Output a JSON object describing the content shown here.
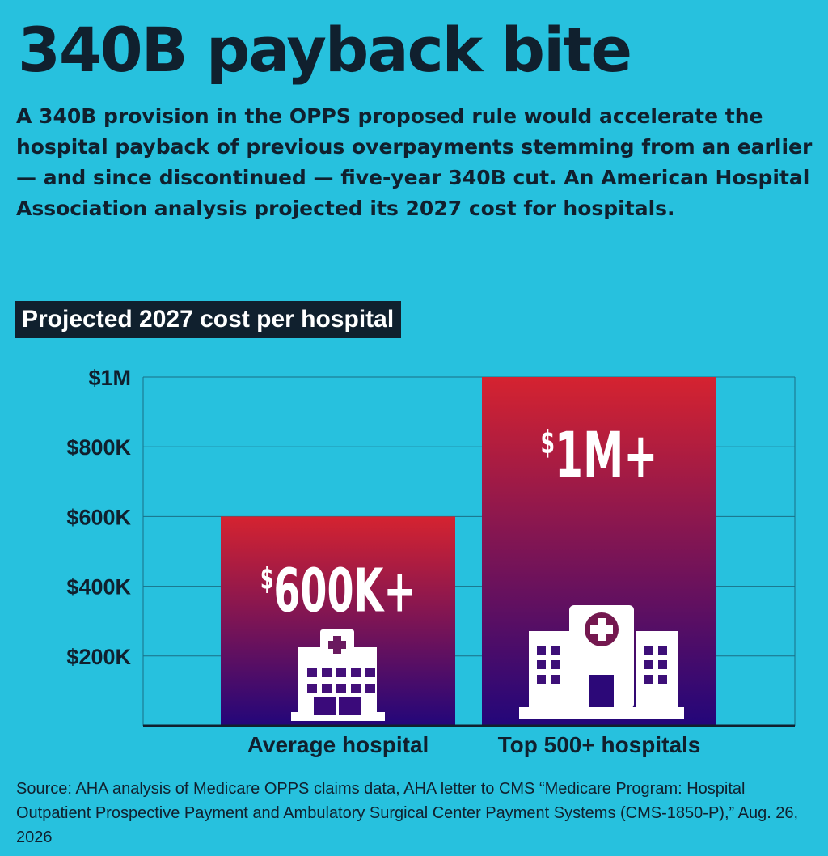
{
  "header": {
    "title": "340B payback bite",
    "dek": "A 340B provision in the OPPS proposed rule would accelerate the hospital payback of previous overpayments stemming from an earlier — and since discontinued — five-year 340B cut. An American Hospital Association analysis projected its 2027 cost for hospitals."
  },
  "chart_data": {
    "type": "bar",
    "title": "Projected 2027 cost per hospital",
    "categories": [
      "Average hospital",
      "Top 500+ hospitals"
    ],
    "values": [
      600000,
      1000000
    ],
    "value_labels": [
      {
        "symbol": "$",
        "amount": "600K+"
      },
      {
        "symbol": "$",
        "amount": "1M+"
      }
    ],
    "ylim": [
      0,
      1000000
    ],
    "yticks": [
      {
        "value": 200000,
        "label": "$200K"
      },
      {
        "value": 400000,
        "label": "$400K"
      },
      {
        "value": 600000,
        "label": "$600K"
      },
      {
        "value": 800000,
        "label": "$800K"
      },
      {
        "value": 1000000,
        "label": "$1M"
      }
    ],
    "grid": true,
    "bar_gradient": [
      "#d52330",
      "#23067a"
    ],
    "bar_icons": [
      "hospital-small-icon",
      "hospital-large-icon"
    ]
  },
  "footer": {
    "source": "Source: AHA analysis of Medicare OPPS claims data, AHA letter to CMS “Medicare Program: Hospital Outpatient Prospective Payment and Ambulatory Surgical Center Payment Systems (CMS-1850-P),” Aug. 26, 2026"
  }
}
